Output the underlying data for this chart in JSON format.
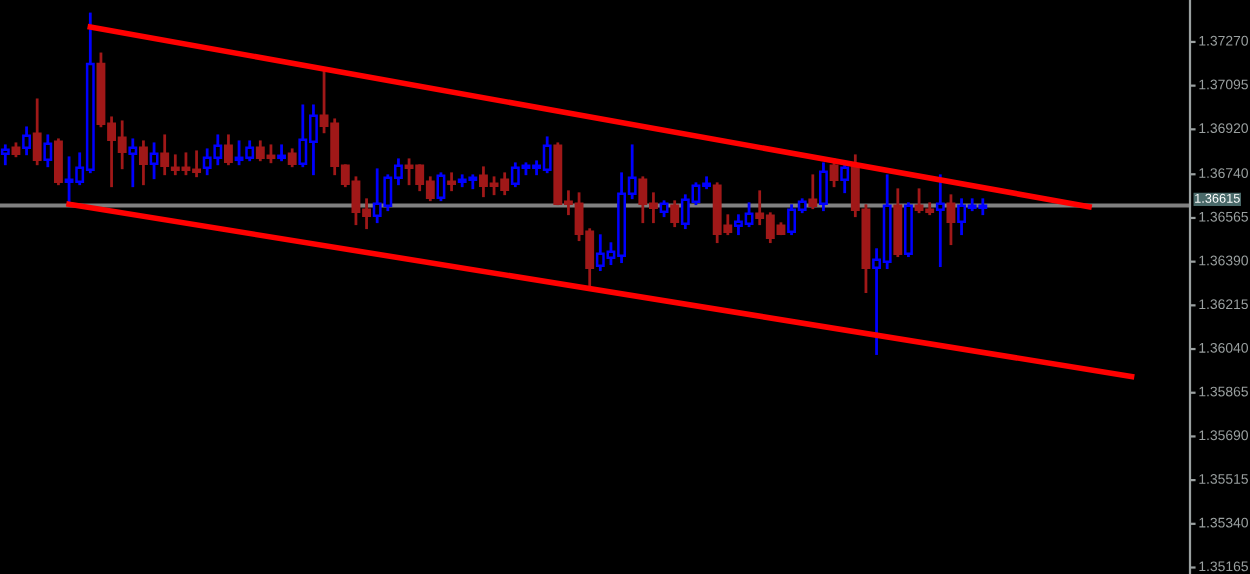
{
  "chart_data": {
    "type": "candlestick",
    "categories": [
      null,
      null,
      null,
      null,
      null,
      null,
      null,
      null,
      null,
      null,
      null,
      null,
      null,
      null,
      null,
      null,
      null,
      null,
      null,
      null,
      null,
      null,
      null,
      null,
      null,
      null,
      null,
      null,
      null,
      null,
      null,
      null,
      null,
      null,
      null,
      null,
      null,
      null,
      null,
      null,
      null,
      null,
      null,
      null,
      null,
      null,
      null,
      null,
      null,
      null,
      null,
      null,
      null,
      null,
      null,
      null,
      null,
      null,
      null,
      null,
      null,
      null,
      null,
      null,
      null,
      null,
      null,
      null,
      null,
      null,
      null,
      null,
      null,
      null,
      null,
      null,
      null,
      null,
      null,
      null,
      null,
      null,
      null,
      null,
      null,
      null,
      null,
      null,
      null,
      null,
      null,
      null,
      null,
      null,
      null,
      null,
      null,
      null,
      null,
      null,
      null,
      null,
      null,
      null,
      null,
      null,
      null,
      null,
      null,
      null,
      null,
      null
    ],
    "ylim": [
      1.35139,
      1.37438
    ],
    "yticks": [
      {
        "value": 1.3727,
        "label": "1.37270"
      },
      {
        "value": 1.37095,
        "label": "1.37095"
      },
      {
        "value": 1.3692,
        "label": "1.36920"
      },
      {
        "value": 1.3674,
        "label": "1.36740"
      },
      {
        "value": 1.36565,
        "label": "1.36565"
      },
      {
        "value": 1.3639,
        "label": "1.36390"
      },
      {
        "value": 1.36215,
        "label": "1.36215"
      },
      {
        "value": 1.3604,
        "label": "1.36040"
      },
      {
        "value": 1.35865,
        "label": "1.35865"
      },
      {
        "value": 1.3569,
        "label": "1.35690"
      },
      {
        "value": 1.35515,
        "label": "1.35515"
      },
      {
        "value": 1.3534,
        "label": "1.35340"
      },
      {
        "value": 1.35165,
        "label": "1.35165"
      }
    ],
    "tick_labels": "y",
    "ref_lines": [
      {
        "axis": "y",
        "value": 1.36615,
        "label": "1.36615",
        "color": "#808080"
      }
    ],
    "series": [
      {
        "ohlc": [
          [
            1.36822,
            1.36854,
            1.36782,
            1.36838
          ],
          [
            1.36846,
            1.36862,
            1.36814,
            1.36822
          ],
          [
            1.36846,
            1.36926,
            1.36822,
            1.36894
          ],
          [
            1.36902,
            1.37038,
            1.36782,
            1.36798
          ],
          [
            1.36798,
            1.36894,
            1.36774,
            1.36862
          ],
          [
            1.3687,
            1.36878,
            1.36702,
            1.3671
          ],
          [
            1.3671,
            1.36806,
            1.36622,
            1.36718
          ],
          [
            1.3671,
            1.36822,
            1.36702,
            1.36766
          ],
          [
            1.36758,
            1.37382,
            1.3675,
            1.37182
          ],
          [
            1.37182,
            1.37222,
            1.36934,
            1.36942
          ],
          [
            1.36942,
            1.36966,
            1.36694,
            1.36878
          ],
          [
            1.36886,
            1.3695,
            1.36766,
            1.3683
          ],
          [
            1.36822,
            1.36878,
            1.36694,
            1.36846
          ],
          [
            1.36846,
            1.3687,
            1.36702,
            1.36782
          ],
          [
            1.36782,
            1.36862,
            1.36726,
            1.36822
          ],
          [
            1.36822,
            1.36894,
            1.36742,
            1.36774
          ],
          [
            1.36766,
            1.36814,
            1.36742,
            1.36758
          ],
          [
            1.36766,
            1.36822,
            1.36742,
            1.36758
          ],
          [
            1.36758,
            1.3683,
            1.36734,
            1.3675
          ],
          [
            1.36766,
            1.36838,
            1.36742,
            1.36806
          ],
          [
            1.36806,
            1.36894,
            1.36782,
            1.36854
          ],
          [
            1.36854,
            1.36894,
            1.36782,
            1.3679
          ],
          [
            1.36798,
            1.3687,
            1.36782,
            1.36806
          ],
          [
            1.36806,
            1.3687,
            1.36798,
            1.36846
          ],
          [
            1.36846,
            1.3687,
            1.36798,
            1.36806
          ],
          [
            1.36814,
            1.36854,
            1.3679,
            1.36806
          ],
          [
            1.36806,
            1.36854,
            1.36798,
            1.36814
          ],
          [
            1.36822,
            1.36838,
            1.36774,
            1.36782
          ],
          [
            1.36782,
            1.37014,
            1.36774,
            1.36878
          ],
          [
            1.3687,
            1.37014,
            1.36742,
            1.36974
          ],
          [
            1.36974,
            1.37158,
            1.3691,
            1.36934
          ],
          [
            1.36942,
            1.36958,
            1.36742,
            1.36774
          ],
          [
            1.36774,
            1.36774,
            1.36694,
            1.36702
          ],
          [
            1.3671,
            1.36726,
            1.36542,
            1.3659
          ],
          [
            1.36598,
            1.36638,
            1.36526,
            1.36574
          ],
          [
            1.36574,
            1.36758,
            1.3655,
            1.36622
          ],
          [
            1.36614,
            1.36734,
            1.36598,
            1.36726
          ],
          [
            1.36726,
            1.36798,
            1.36702,
            1.36774
          ],
          [
            1.36774,
            1.36798,
            1.36702,
            1.36766
          ],
          [
            1.36774,
            1.36774,
            1.36678,
            1.36702
          ],
          [
            1.3671,
            1.36726,
            1.36638,
            1.36646
          ],
          [
            1.36646,
            1.36742,
            1.36638,
            1.36734
          ],
          [
            1.3671,
            1.36742,
            1.36678,
            1.36702
          ],
          [
            1.3671,
            1.36734,
            1.36694,
            1.36718
          ],
          [
            1.36718,
            1.36734,
            1.36686,
            1.36726
          ],
          [
            1.36734,
            1.36766,
            1.36654,
            1.36694
          ],
          [
            1.36702,
            1.36726,
            1.36662,
            1.36694
          ],
          [
            1.36718,
            1.36742,
            1.36662,
            1.36678
          ],
          [
            1.36702,
            1.36782,
            1.36694,
            1.36766
          ],
          [
            1.36766,
            1.36782,
            1.36742,
            1.36774
          ],
          [
            1.36766,
            1.3679,
            1.36742,
            1.36774
          ],
          [
            1.36758,
            1.36886,
            1.3675,
            1.36854
          ],
          [
            1.36854,
            1.36862,
            1.36622,
            1.36622
          ],
          [
            1.3663,
            1.3667,
            1.36582,
            1.36622
          ],
          [
            1.36622,
            1.36662,
            1.36478,
            1.36502
          ],
          [
            1.3651,
            1.36518,
            1.36294,
            1.36366
          ],
          [
            1.36374,
            1.36494,
            1.36358,
            1.36422
          ],
          [
            1.36406,
            1.36462,
            1.36382,
            1.3643
          ],
          [
            1.36414,
            1.36742,
            1.3639,
            1.36662
          ],
          [
            1.36662,
            1.36854,
            1.36646,
            1.36726
          ],
          [
            1.36718,
            1.36726,
            1.3655,
            1.36622
          ],
          [
            1.36622,
            1.36662,
            1.3655,
            1.36606
          ],
          [
            1.3659,
            1.3663,
            1.36574,
            1.36622
          ],
          [
            1.36614,
            1.3663,
            1.36534,
            1.3655
          ],
          [
            1.36542,
            1.36654,
            1.36526,
            1.36638
          ],
          [
            1.3663,
            1.36702,
            1.36622,
            1.36694
          ],
          [
            1.36694,
            1.36726,
            1.36686,
            1.36702
          ],
          [
            1.36694,
            1.36702,
            1.3647,
            1.36502
          ],
          [
            1.36534,
            1.36574,
            1.36502,
            1.3651
          ],
          [
            1.36534,
            1.36574,
            1.36502,
            1.3655
          ],
          [
            1.36542,
            1.36622,
            1.36534,
            1.36582
          ],
          [
            1.36582,
            1.3667,
            1.36542,
            1.36566
          ],
          [
            1.36574,
            1.36582,
            1.3647,
            1.36486
          ],
          [
            1.36534,
            1.36542,
            1.36502,
            1.36502
          ],
          [
            1.3651,
            1.36614,
            1.36502,
            1.36598
          ],
          [
            1.36598,
            1.36638,
            1.3659,
            1.3663
          ],
          [
            1.36638,
            1.36734,
            1.36606,
            1.36614
          ],
          [
            1.36622,
            1.36782,
            1.36598,
            1.3675
          ],
          [
            1.36774,
            1.36798,
            1.36694,
            1.36718
          ],
          [
            1.36718,
            1.36774,
            1.3667,
            1.36766
          ],
          [
            1.36774,
            1.36814,
            1.36574,
            1.36598
          ],
          [
            1.36598,
            1.36614,
            1.3627,
            1.36366
          ],
          [
            1.36366,
            1.36438,
            1.36022,
            1.36398
          ],
          [
            1.3639,
            1.36734,
            1.36366,
            1.36614
          ],
          [
            1.36614,
            1.36678,
            1.36414,
            1.36422
          ],
          [
            1.36422,
            1.36622,
            1.36414,
            1.36614
          ],
          [
            1.36614,
            1.36678,
            1.3659,
            1.36598
          ],
          [
            1.36598,
            1.36622,
            1.36582,
            1.3659
          ],
          [
            1.36598,
            1.36734,
            1.36374,
            1.36622
          ],
          [
            1.36622,
            1.36654,
            1.36462,
            1.3655
          ],
          [
            1.3655,
            1.36638,
            1.36502,
            1.36614
          ],
          [
            1.36606,
            1.36638,
            1.36598,
            1.36614
          ],
          [
            1.36606,
            1.36638,
            1.36582,
            1.36614
          ],
          null,
          null,
          null,
          null,
          null,
          null,
          null,
          null,
          null,
          null,
          null,
          null,
          null,
          null,
          null,
          null,
          null,
          null,
          null
        ],
        "colors": [
          "#0000ff",
          "#a01818",
          "#0000ff",
          "#a01818",
          "#0000ff",
          "#a01818",
          "#0000ff",
          "#0000ff",
          "#0000ff",
          "#a01818",
          "#a01818",
          "#a01818",
          "#0000ff",
          "#a01818",
          "#0000ff",
          "#a01818",
          "#a01818",
          "#a01818",
          "#a01818",
          "#0000ff",
          "#0000ff",
          "#a01818",
          "#0000ff",
          "#0000ff",
          "#a01818",
          "#a01818",
          "#0000ff",
          "#a01818",
          "#0000ff",
          "#0000ff",
          "#a01818",
          "#a01818",
          "#a01818",
          "#a01818",
          "#a01818",
          "#0000ff",
          "#0000ff",
          "#0000ff",
          "#a01818",
          "#a01818",
          "#a01818",
          "#0000ff",
          "#a01818",
          "#0000ff",
          "#0000ff",
          "#a01818",
          "#a01818",
          "#a01818",
          "#0000ff",
          "#0000ff",
          "#0000ff",
          "#0000ff",
          "#a01818",
          "#a01818",
          "#a01818",
          "#a01818",
          "#0000ff",
          "#0000ff",
          "#0000ff",
          "#0000ff",
          "#a01818",
          "#a01818",
          "#0000ff",
          "#a01818",
          "#0000ff",
          "#0000ff",
          "#0000ff",
          "#a01818",
          "#a01818",
          "#0000ff",
          "#0000ff",
          "#a01818",
          "#a01818",
          "#a01818",
          "#0000ff",
          "#0000ff",
          "#a01818",
          "#0000ff",
          "#a01818",
          "#0000ff",
          "#a01818",
          "#a01818",
          "#0000ff",
          "#0000ff",
          "#a01818",
          "#0000ff",
          "#a01818",
          "#a01818",
          "#0000ff",
          "#a01818",
          "#0000ff",
          "#0000ff",
          "#0000ff",
          null,
          null,
          null,
          null,
          null,
          null,
          null,
          null,
          null,
          null,
          null,
          null,
          null,
          null,
          null,
          null,
          null,
          null,
          null
        ]
      },
      {
        "type": "line",
        "color": "#ff0000",
        "values": [
          null,
          null,
          null,
          null,
          null,
          null,
          null,
          null,
          1.3733,
          null,
          null,
          null,
          null,
          null,
          null,
          null,
          null,
          null,
          null,
          null,
          null,
          null,
          null,
          null,
          null,
          null,
          null,
          null,
          null,
          null,
          null,
          null,
          null,
          null,
          null,
          null,
          null,
          null,
          null,
          null,
          null,
          null,
          null,
          null,
          null,
          null,
          null,
          null,
          null,
          null,
          null,
          null,
          null,
          null,
          null,
          null,
          null,
          null,
          null,
          null,
          null,
          null,
          null,
          null,
          null,
          null,
          null,
          null,
          null,
          null,
          null,
          null,
          null,
          null,
          null,
          null,
          null,
          null,
          null,
          null,
          null,
          null,
          null,
          null,
          null,
          null,
          null,
          null,
          null,
          null,
          null,
          null,
          null,
          null,
          null,
          null,
          null,
          null,
          null,
          null,
          null,
          null,
          1.3661,
          null,
          null,
          null,
          null,
          null,
          null,
          null,
          null,
          null
        ]
      },
      {
        "type": "line",
        "color": "#ff0000",
        "values": [
          null,
          null,
          null,
          null,
          null,
          null,
          1.3662,
          null,
          null,
          null,
          null,
          null,
          null,
          null,
          null,
          null,
          null,
          null,
          null,
          null,
          null,
          null,
          null,
          null,
          null,
          null,
          null,
          null,
          null,
          null,
          null,
          null,
          null,
          null,
          null,
          null,
          null,
          null,
          null,
          null,
          null,
          null,
          null,
          null,
          null,
          null,
          null,
          null,
          null,
          null,
          null,
          null,
          null,
          null,
          null,
          null,
          null,
          null,
          null,
          null,
          null,
          null,
          null,
          null,
          null,
          null,
          null,
          null,
          null,
          null,
          null,
          null,
          null,
          null,
          null,
          null,
          null,
          null,
          null,
          null,
          null,
          null,
          null,
          null,
          null,
          null,
          null,
          null,
          null,
          null,
          null,
          null,
          null,
          null,
          null,
          null,
          null,
          null,
          null,
          null,
          null,
          null,
          null,
          null,
          null,
          null,
          1.3593,
          null,
          null,
          null,
          null,
          null
        ]
      }
    ]
  }
}
